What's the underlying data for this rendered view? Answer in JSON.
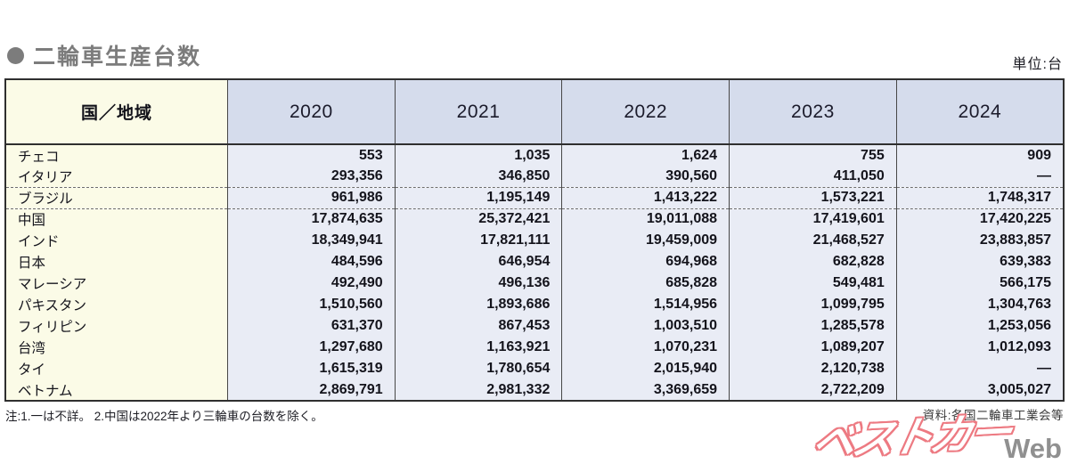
{
  "page": {
    "title": "二輪車生産台数",
    "unit_label": "単位:台",
    "note": "注:1.一は不詳。 2.中国は2022年より三輪車の台数を除く。",
    "source": "資料:各国二輪車工業会等",
    "logo": {
      "jp": "ベストカー",
      "web": "Web"
    }
  },
  "colors": {
    "title_gray": "#7c7c7c",
    "region_column_bg": "#fbfbe7",
    "year_header_bg": "#d5dcec",
    "value_cell_bg": "#e9ecf5",
    "border_dark": "#2f2f2f",
    "logo_red": "#ed7a82",
    "logo_web_gray": "#909090"
  },
  "chart_data": {
    "type": "table",
    "title": "二輪車生産台数",
    "unit": "台",
    "columns": [
      "国／地域",
      "2020",
      "2021",
      "2022",
      "2023",
      "2024"
    ],
    "rows": [
      {
        "country": "チェコ",
        "values": [
          "553",
          "1,035",
          "1,624",
          "755",
          "909"
        ],
        "group_end": false
      },
      {
        "country": "イタリア",
        "values": [
          "293,356",
          "346,850",
          "390,560",
          "411,050",
          "—"
        ],
        "group_end": true
      },
      {
        "country": "ブラジル",
        "values": [
          "961,986",
          "1,195,149",
          "1,413,222",
          "1,573,221",
          "1,748,317"
        ],
        "group_end": true
      },
      {
        "country": "中国",
        "values": [
          "17,874,635",
          "25,372,421",
          "19,011,088",
          "17,419,601",
          "17,420,225"
        ],
        "group_end": false
      },
      {
        "country": "インド",
        "values": [
          "18,349,941",
          "17,821,111",
          "19,459,009",
          "21,468,527",
          "23,883,857"
        ],
        "group_end": false
      },
      {
        "country": "日本",
        "values": [
          "484,596",
          "646,954",
          "694,968",
          "682,828",
          "639,383"
        ],
        "group_end": false
      },
      {
        "country": "マレーシア",
        "values": [
          "492,490",
          "496,136",
          "685,828",
          "549,481",
          "566,175"
        ],
        "group_end": false
      },
      {
        "country": "パキスタン",
        "values": [
          "1,510,560",
          "1,893,686",
          "1,514,956",
          "1,099,795",
          "1,304,763"
        ],
        "group_end": false
      },
      {
        "country": "フィリピン",
        "values": [
          "631,370",
          "867,453",
          "1,003,510",
          "1,285,578",
          "1,253,056"
        ],
        "group_end": false
      },
      {
        "country": "台湾",
        "values": [
          "1,297,680",
          "1,163,921",
          "1,070,231",
          "1,089,207",
          "1,012,093"
        ],
        "group_end": false
      },
      {
        "country": "タイ",
        "values": [
          "1,615,319",
          "1,780,654",
          "2,015,940",
          "2,120,738",
          "—"
        ],
        "group_end": false
      },
      {
        "country": "ベトナム",
        "values": [
          "2,869,791",
          "2,981,332",
          "3,369,659",
          "2,722,209",
          "3,005,027"
        ],
        "group_end": false
      }
    ]
  }
}
